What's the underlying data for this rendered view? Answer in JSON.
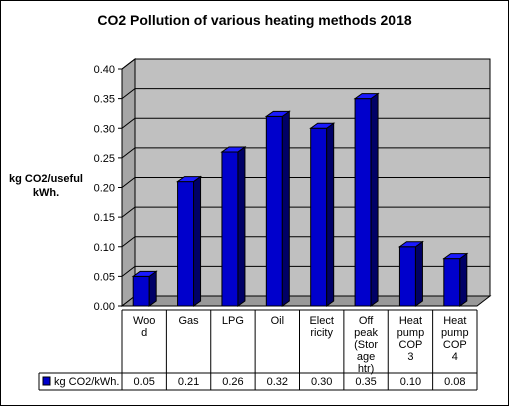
{
  "chart_data": {
    "type": "bar",
    "title": "CO2 Pollution of various heating methods 2018",
    "ylabel": "kg CO2/useful kWh.",
    "ylim": [
      0,
      0.4
    ],
    "yticks": [
      "0.00",
      "0.05",
      "0.10",
      "0.15",
      "0.20",
      "0.25",
      "0.30",
      "0.35",
      "0.40"
    ],
    "categories": [
      [
        "Woo",
        "d"
      ],
      [
        "Gas"
      ],
      [
        "LPG"
      ],
      [
        "Oil"
      ],
      [
        "Elect",
        "ricity"
      ],
      [
        "Off",
        "peak",
        "(Stor",
        "age",
        "htr)"
      ],
      [
        "Heat",
        "pump",
        "COP",
        "3"
      ],
      [
        "Heat",
        "pump",
        "COP",
        "4"
      ]
    ],
    "series": [
      {
        "name": "kg CO2/kWh.",
        "values": [
          0.05,
          0.21,
          0.26,
          0.32,
          0.3,
          0.35,
          0.1,
          0.08
        ],
        "labels": [
          "0.05",
          "0.21",
          "0.26",
          "0.32",
          "0.30",
          "0.35",
          "0.10",
          "0.08"
        ]
      }
    ],
    "grid": true,
    "legend": "data-table",
    "colors": {
      "bar_front": "#0000cc",
      "bar_side": "#000066",
      "bar_top": "#1a1aff",
      "plot_back": "#c0c0c0",
      "plot_floor": "#999999"
    }
  }
}
